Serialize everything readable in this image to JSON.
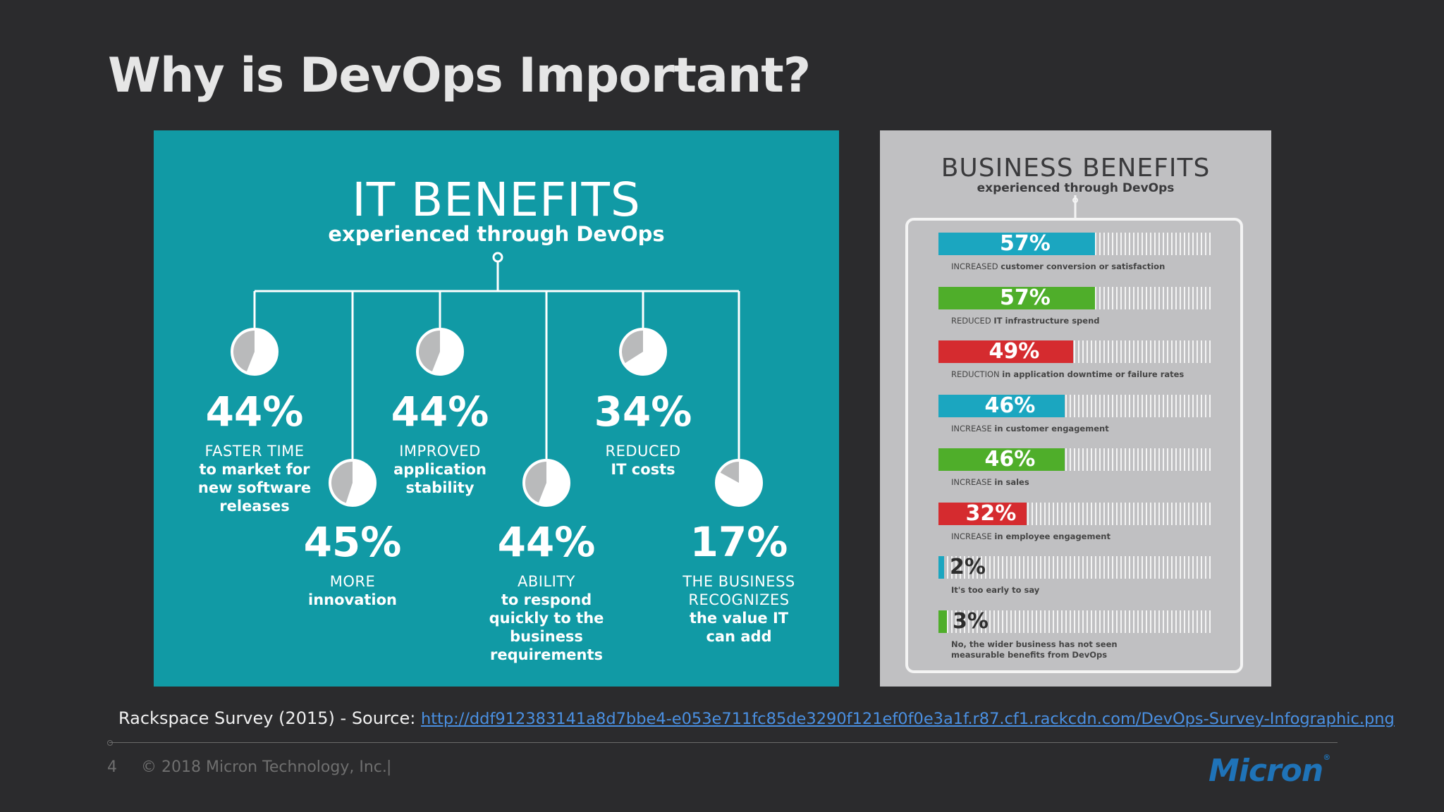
{
  "slide": {
    "title": "Why is DevOps Important?",
    "source_prefix": "Rackspace Survey (2015) - Source: ",
    "source_link": "http://ddf912383141a8d7bbe4-e053e711fc85de3290f121ef0f0e3a1f.r87.cf1.rackcdn.com/DevOps-Survey-Infographic.png",
    "page_number": "4",
    "copyright": "© 2018 Micron Technology, Inc.",
    "separator": "|",
    "logo_text": "Micron"
  },
  "it_benefits": {
    "title": "IT BENEFITS",
    "subtitle": "experienced through DevOps",
    "items": [
      {
        "pct": "44%",
        "value": 44,
        "caption": "FASTER TIME",
        "desc": "to market for\nnew software\nreleases"
      },
      {
        "pct": "45%",
        "value": 45,
        "caption": "MORE",
        "desc": "innovation"
      },
      {
        "pct": "44%",
        "value": 44,
        "caption": "IMPROVED",
        "desc": "application\nstability"
      },
      {
        "pct": "44%",
        "value": 44,
        "caption": "ABILITY",
        "desc": "to respond\nquickly to the\nbusiness\nrequirements"
      },
      {
        "pct": "34%",
        "value": 34,
        "caption": "REDUCED",
        "desc": "IT costs"
      },
      {
        "pct": "17%",
        "value": 17,
        "caption": "THE BUSINESS\nRECOGNIZES",
        "desc": "the value IT\ncan add"
      }
    ]
  },
  "business_benefits": {
    "title": "BUSINESS BENEFITS",
    "subtitle": "experienced through DevOps",
    "items": [
      {
        "pct": "57%",
        "value": 57,
        "color": "#1ba6c0",
        "prefix": "INCREASED",
        "label": "customer conversion or satisfaction"
      },
      {
        "pct": "57%",
        "value": 57,
        "color": "#4fae2a",
        "prefix": "REDUCED",
        "label": "IT infrastructure spend"
      },
      {
        "pct": "49%",
        "value": 49,
        "color": "#d52b2f",
        "prefix": "REDUCTION",
        "label": "in application downtime or failure rates"
      },
      {
        "pct": "46%",
        "value": 46,
        "color": "#1ba6c0",
        "prefix": "INCREASE",
        "label": "in customer engagement"
      },
      {
        "pct": "46%",
        "value": 46,
        "color": "#4fae2a",
        "prefix": "INCREASE",
        "label": "in sales"
      },
      {
        "pct": "32%",
        "value": 32,
        "color": "#d52b2f",
        "prefix": "INCREASE",
        "label": "in employee engagement"
      },
      {
        "pct": "2%",
        "value": 2,
        "color": "#1ba6c0",
        "prefix": "",
        "label": "It's too early to say"
      },
      {
        "pct": "3%",
        "value": 3,
        "color": "#4fae2a",
        "prefix": "",
        "label": "No, the wider business has not seen\nmeasurable benefits from DevOps"
      }
    ]
  }
}
